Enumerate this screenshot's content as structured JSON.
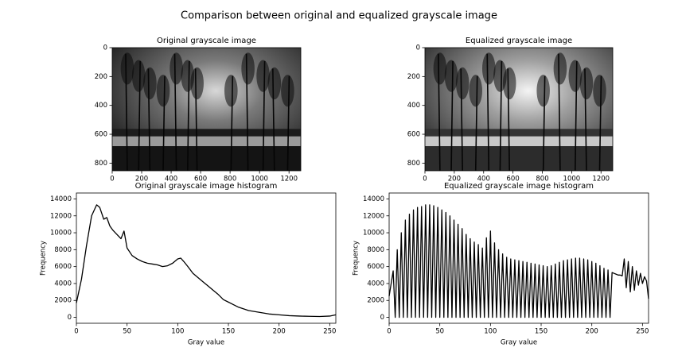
{
  "suptitle": "Comparison between original and equalized grayscale image",
  "chart_data": [
    {
      "type": "image",
      "title": "Original grayscale image",
      "xlim": [
        0,
        1280
      ],
      "ylim": [
        853,
        0
      ],
      "xticks": [
        0,
        200,
        400,
        600,
        800,
        1000,
        1200
      ],
      "yticks": [
        0,
        200,
        400,
        600,
        800
      ]
    },
    {
      "type": "image",
      "title": "Equalized grayscale image",
      "xlim": [
        0,
        1280
      ],
      "ylim": [
        853,
        0
      ],
      "xticks": [
        0,
        200,
        400,
        600,
        800,
        1000,
        1200
      ],
      "yticks": [
        0,
        200,
        400,
        600,
        800
      ]
    },
    {
      "type": "line",
      "title": "Original grayscale image histogram",
      "xlabel": "Gray value",
      "ylabel": "Frequency",
      "color": "#000000",
      "x": [
        0,
        5,
        10,
        15,
        20,
        23,
        27,
        30,
        33,
        36,
        40,
        44,
        47,
        50,
        55,
        60,
        65,
        70,
        75,
        80,
        85,
        90,
        95,
        100,
        103,
        106,
        110,
        115,
        120,
        125,
        130,
        135,
        140,
        145,
        150,
        160,
        170,
        180,
        190,
        200,
        210,
        220,
        230,
        240,
        250,
        256
      ],
      "values": [
        1700,
        4500,
        8500,
        12000,
        13300,
        13000,
        11600,
        11800,
        10800,
        10300,
        9800,
        9300,
        10200,
        8200,
        7300,
        6900,
        6600,
        6400,
        6300,
        6200,
        6000,
        6100,
        6400,
        6900,
        7000,
        6600,
        6000,
        5200,
        4700,
        4200,
        3700,
        3200,
        2700,
        2100,
        1800,
        1200,
        800,
        600,
        400,
        300,
        200,
        150,
        120,
        100,
        150,
        300
      ],
      "xlim": [
        0,
        256
      ],
      "ylim": [
        -700,
        14700
      ],
      "xticks": [
        0,
        50,
        100,
        150,
        200,
        250
      ],
      "yticks": [
        0,
        2000,
        4000,
        6000,
        8000,
        10000,
        12000,
        14000
      ]
    },
    {
      "type": "line",
      "title": "Equalized grayscale image histogram",
      "xlabel": "Gray value",
      "ylabel": "Frequency",
      "color": "#000000",
      "x": [
        0,
        2,
        4,
        6,
        8,
        10,
        12,
        14,
        16,
        18,
        20,
        22,
        24,
        26,
        28,
        30,
        32,
        34,
        36,
        38,
        40,
        42,
        44,
        46,
        48,
        50,
        52,
        54,
        56,
        58,
        60,
        62,
        64,
        66,
        68,
        70,
        72,
        74,
        76,
        78,
        80,
        82,
        84,
        86,
        88,
        90,
        92,
        94,
        96,
        98,
        100,
        102,
        104,
        106,
        108,
        110,
        112,
        114,
        116,
        118,
        120,
        122,
        124,
        126,
        128,
        130,
        132,
        134,
        136,
        138,
        140,
        142,
        144,
        146,
        148,
        150,
        152,
        154,
        156,
        158,
        160,
        162,
        164,
        166,
        168,
        170,
        172,
        174,
        176,
        178,
        180,
        182,
        184,
        186,
        188,
        190,
        192,
        194,
        196,
        198,
        200,
        202,
        204,
        206,
        208,
        210,
        212,
        214,
        216,
        218,
        220,
        222,
        224,
        226,
        228,
        230,
        232,
        234,
        236,
        238,
        240,
        242,
        244,
        246,
        248,
        250,
        252,
        254,
        256
      ],
      "values": [
        2500,
        4000,
        5500,
        0,
        8000,
        0,
        10000,
        0,
        11500,
        0,
        12200,
        0,
        12700,
        0,
        13000,
        0,
        13100,
        0,
        13300,
        0,
        13300,
        0,
        13200,
        0,
        13000,
        0,
        12700,
        0,
        12400,
        0,
        12000,
        0,
        11500,
        0,
        11000,
        0,
        10500,
        0,
        9800,
        0,
        9300,
        0,
        8900,
        0,
        8600,
        0,
        8200,
        0,
        9400,
        0,
        10200,
        0,
        8800,
        0,
        8000,
        0,
        7500,
        0,
        7100,
        0,
        6900,
        0,
        6800,
        0,
        6700,
        0,
        6600,
        0,
        6500,
        0,
        6400,
        0,
        6300,
        0,
        6200,
        0,
        6100,
        0,
        6000,
        0,
        6100,
        0,
        6300,
        0,
        6500,
        0,
        6700,
        0,
        6800,
        0,
        6900,
        0,
        7000,
        0,
        7000,
        0,
        6900,
        0,
        6800,
        0,
        6600,
        0,
        6400,
        0,
        6100,
        0,
        5800,
        0,
        5600,
        0,
        5300,
        5200,
        5100,
        5000,
        5000,
        4900,
        6900,
        3500,
        6600,
        3000,
        6000,
        3200,
        5500,
        3800,
        5200,
        4000,
        4800,
        4300,
        2200
      ],
      "xlim": [
        0,
        256
      ],
      "ylim": [
        -700,
        14700
      ],
      "xticks": [
        0,
        50,
        100,
        150,
        200,
        250
      ],
      "yticks": [
        0,
        2000,
        4000,
        6000,
        8000,
        10000,
        12000,
        14000
      ]
    }
  ]
}
